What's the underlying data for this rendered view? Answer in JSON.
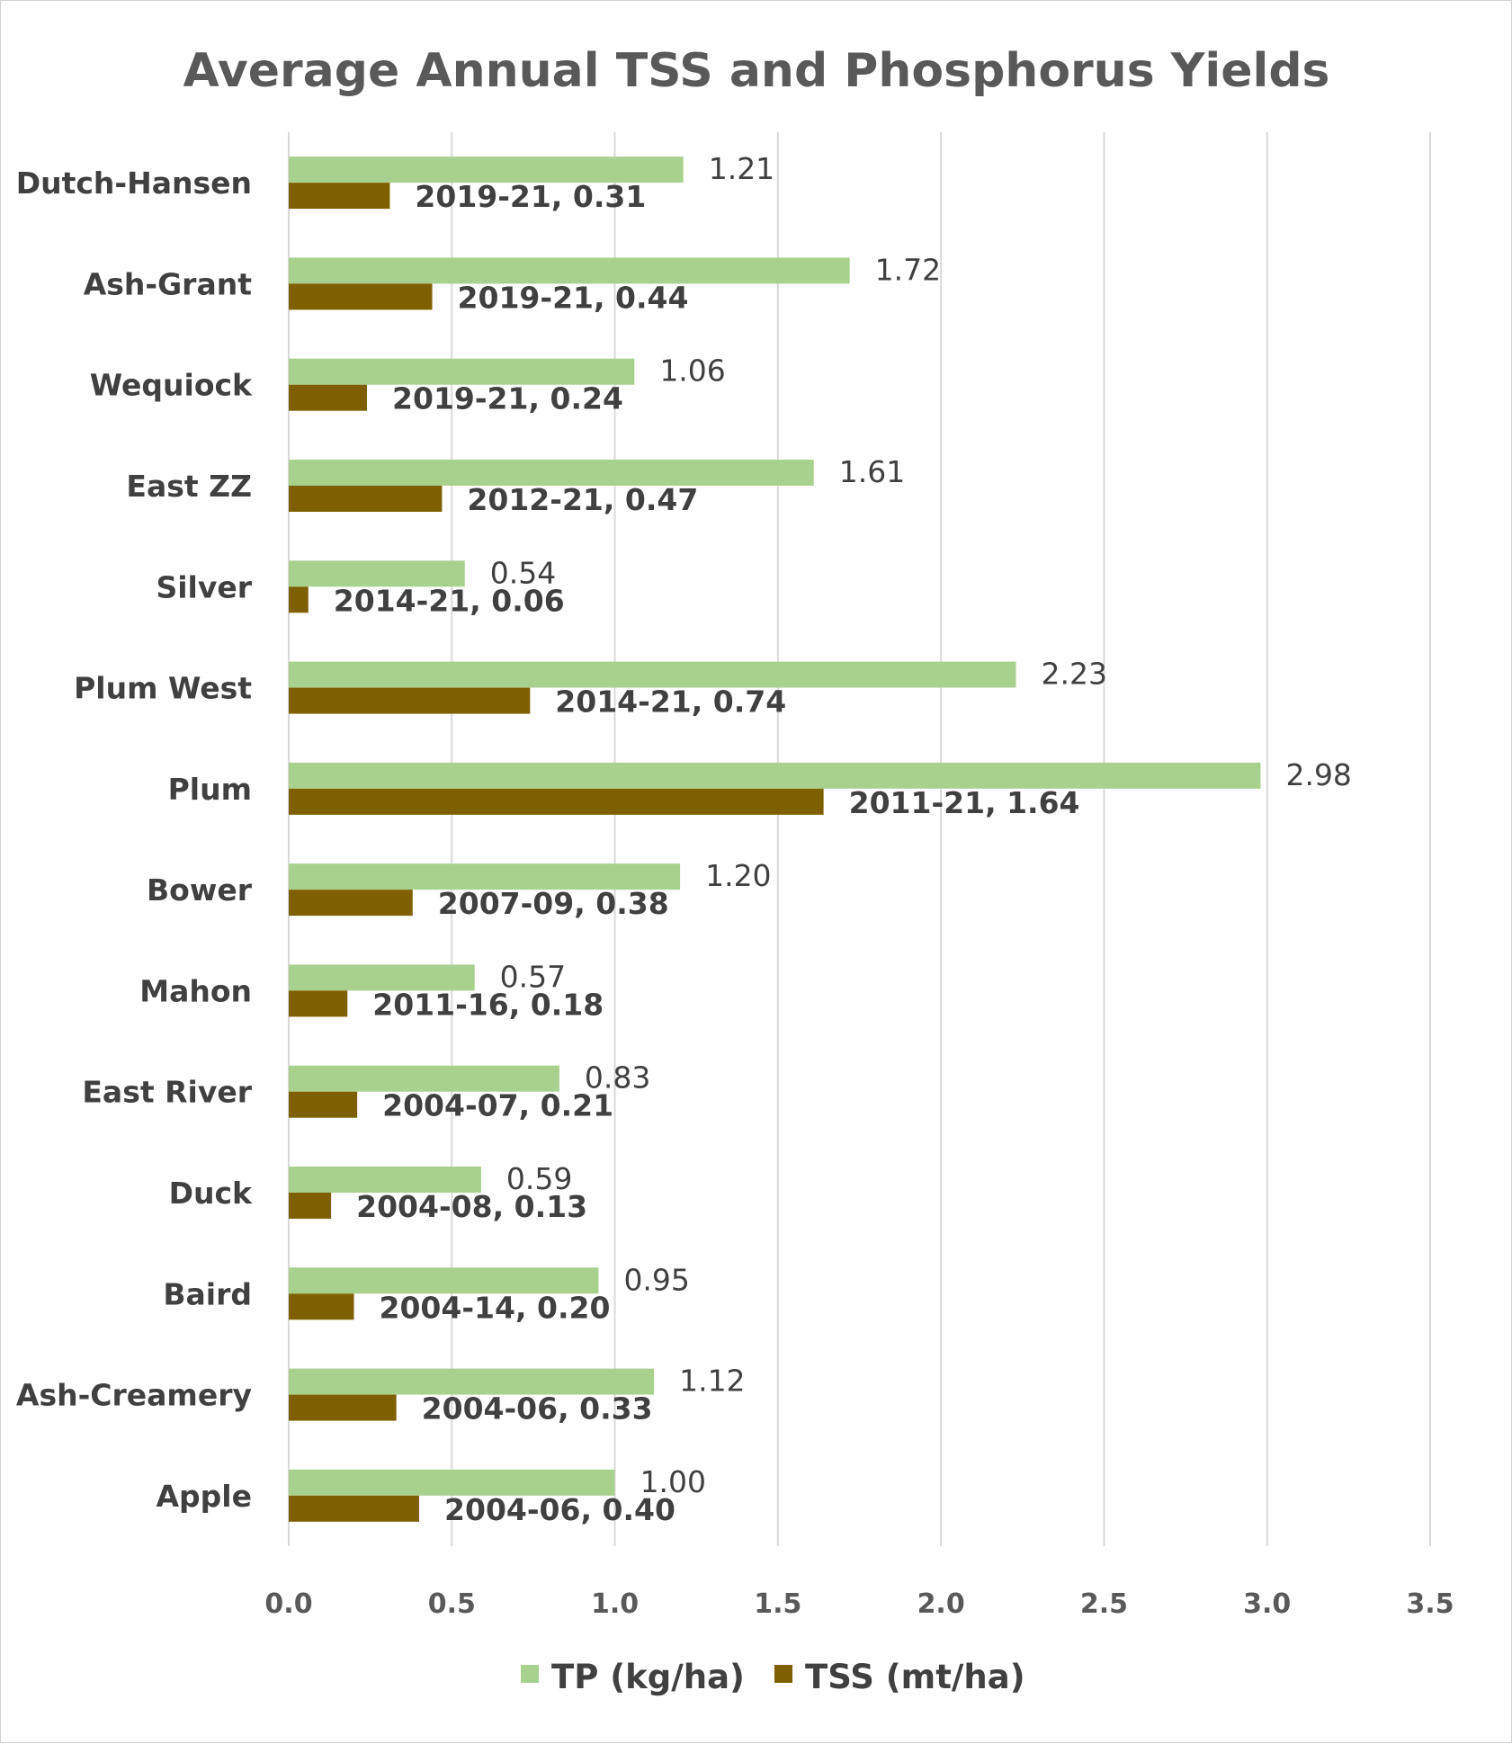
{
  "chart_data": {
    "type": "bar",
    "orientation": "horizontal",
    "title": "Average Annual TSS and Phosphorus Yields",
    "xlim": [
      0,
      3.5
    ],
    "x_ticks": [
      "0.0",
      "0.5",
      "1.0",
      "1.5",
      "2.0",
      "2.5",
      "3.0",
      "3.5"
    ],
    "grid": "vertical",
    "legend_position": "bottom",
    "colors": {
      "tp": "#a9d18e",
      "tss": "#7f6000",
      "grid": "#d9d9d9"
    },
    "categories": [
      "Dutch-Hansen",
      "Ash-Grant",
      "Wequiock",
      "East ZZ",
      "Silver",
      "Plum West",
      "Plum",
      "Bower",
      "Mahon",
      "East River",
      "Duck",
      "Baird",
      "Ash-Creamery",
      "Apple"
    ],
    "series": [
      {
        "name": "TP (kg/ha)",
        "values": [
          1.21,
          1.72,
          1.06,
          1.61,
          0.54,
          2.23,
          2.98,
          1.2,
          0.57,
          0.83,
          0.59,
          0.95,
          1.12,
          1.0
        ],
        "labels": [
          "1.21",
          "1.72",
          "1.06",
          "1.61",
          "0.54",
          "2.23",
          "2.98",
          "1.20",
          "0.57",
          "0.83",
          "0.59",
          "0.95",
          "1.12",
          "1.00"
        ]
      },
      {
        "name": "TSS (mt/ha)",
        "values": [
          0.31,
          0.44,
          0.24,
          0.47,
          0.06,
          0.74,
          1.64,
          0.38,
          0.18,
          0.21,
          0.13,
          0.2,
          0.33,
          0.4
        ],
        "labels": [
          "2019-21, 0.31",
          "2019-21, 0.44",
          "2019-21, 0.24",
          "2012-21, 0.47",
          "2014-21, 0.06",
          "2014-21, 0.74",
          "2011-21, 1.64",
          "2007-09, 0.38",
          "2011-16, 0.18",
          "2004-07, 0.21",
          "2004-08, 0.13",
          "2004-14, 0.20",
          "2004-06, 0.33",
          "2004-06, 0.40"
        ]
      }
    ]
  }
}
